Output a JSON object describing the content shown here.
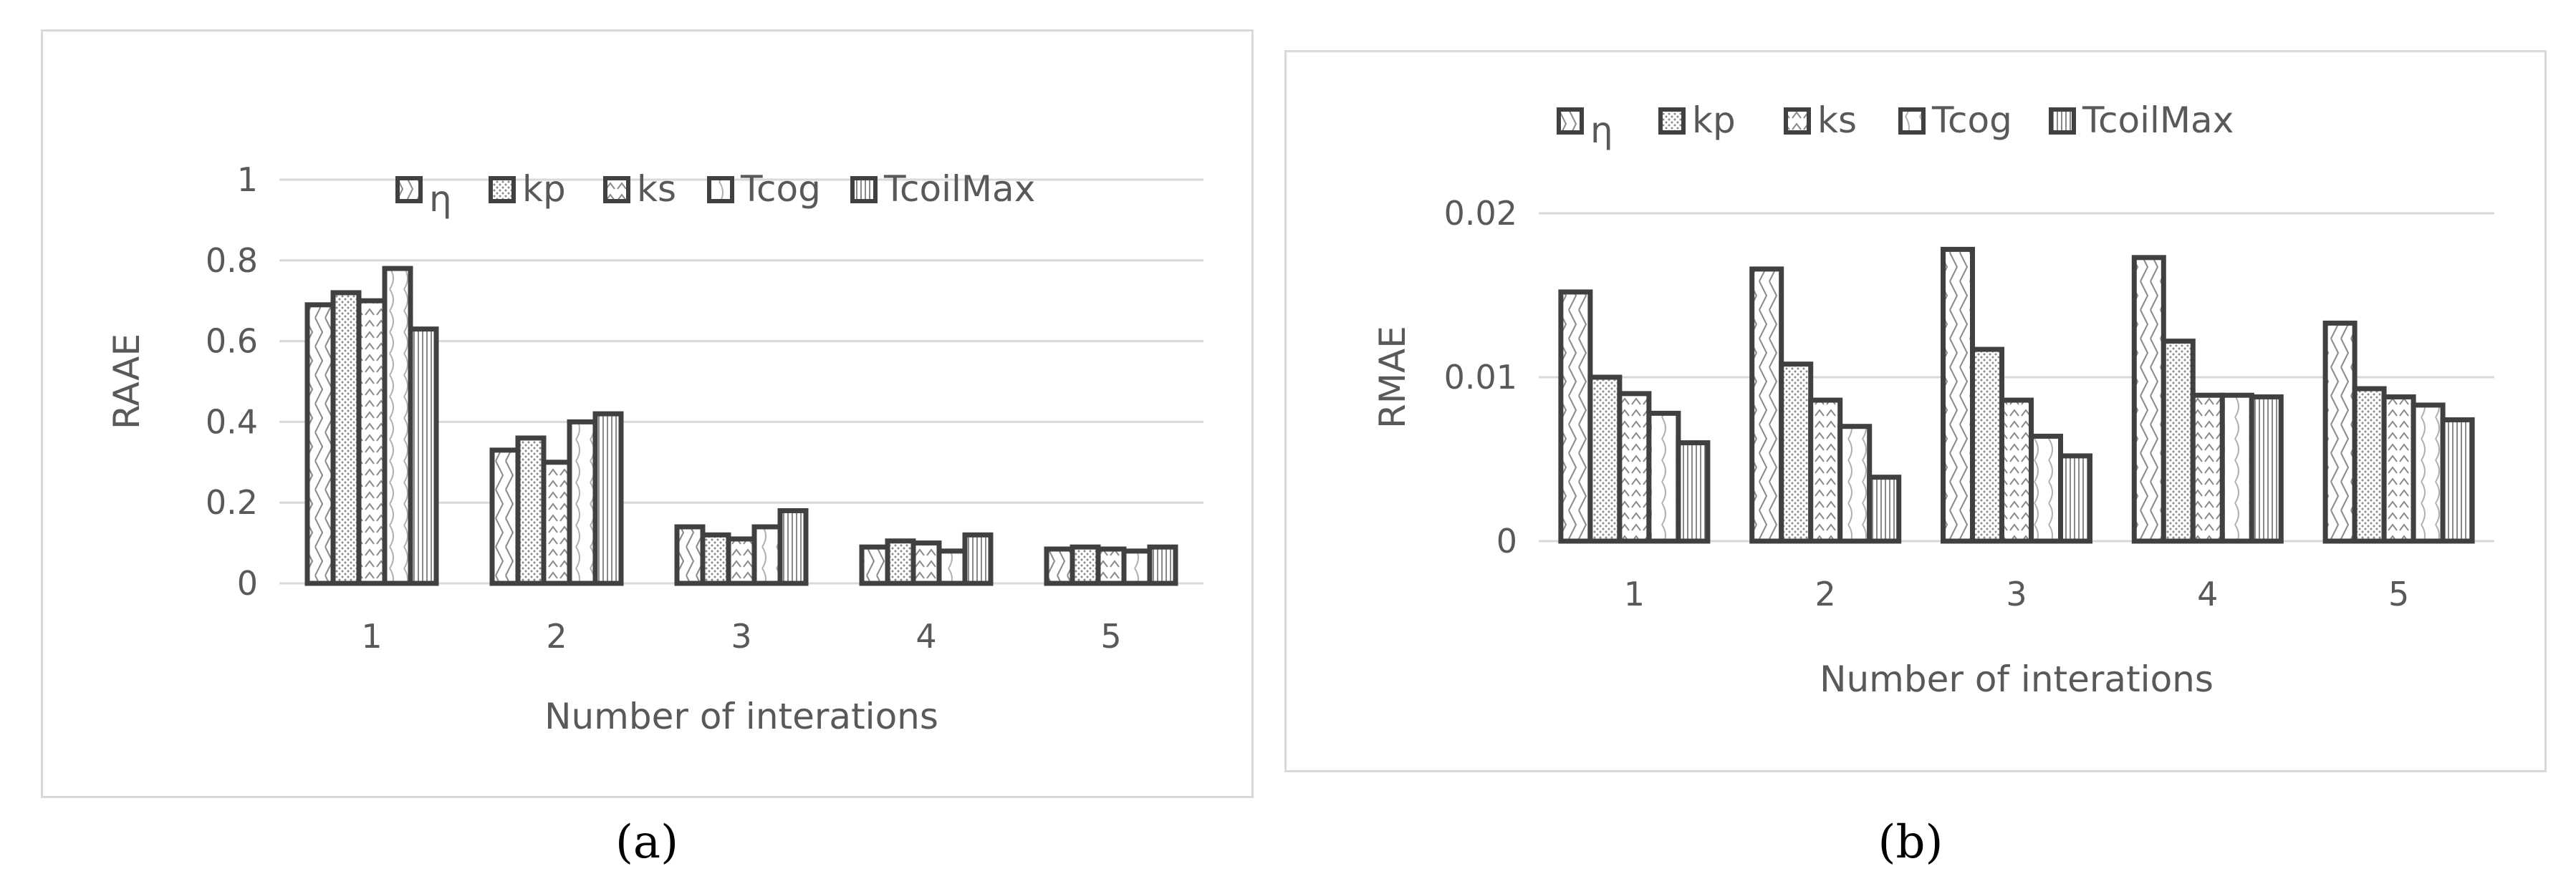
{
  "captions": {
    "a": "(a)",
    "b": "(b)"
  },
  "series_names": [
    "η",
    "kp",
    "ks",
    "Tcog",
    "TcoilMax"
  ],
  "colors": {
    "outline": "#404040",
    "grid": "#d9d9d9",
    "text": "#595959"
  },
  "chart_data": [
    {
      "id": "a",
      "type": "bar",
      "xlabel": "Number of interations",
      "ylabel": "RAAE",
      "categories": [
        "1",
        "2",
        "3",
        "4",
        "5"
      ],
      "yticks": [
        "0",
        "0.2",
        "0.4",
        "0.6",
        "0.8",
        "1"
      ],
      "ylim": [
        0,
        1
      ],
      "grid": true,
      "legend_position": "top",
      "series": [
        {
          "name": "η",
          "values": [
            0.69,
            0.33,
            0.14,
            0.09,
            0.085
          ]
        },
        {
          "name": "kp",
          "values": [
            0.72,
            0.36,
            0.12,
            0.105,
            0.09
          ]
        },
        {
          "name": "ks",
          "values": [
            0.7,
            0.3,
            0.11,
            0.1,
            0.085
          ]
        },
        {
          "name": "Tcog",
          "values": [
            0.78,
            0.4,
            0.14,
            0.08,
            0.08
          ]
        },
        {
          "name": "TcoilMax",
          "values": [
            0.63,
            0.42,
            0.18,
            0.12,
            0.09
          ]
        }
      ]
    },
    {
      "id": "b",
      "type": "bar",
      "xlabel": "Number of interations",
      "ylabel": "RMAE",
      "categories": [
        "1",
        "2",
        "3",
        "4",
        "5"
      ],
      "yticks": [
        "0",
        "0.01",
        "0.02"
      ],
      "ylim": [
        0,
        0.02
      ],
      "grid": true,
      "legend_position": "top",
      "series": [
        {
          "name": "η",
          "values": [
            0.0152,
            0.0166,
            0.0178,
            0.0173,
            0.0133
          ]
        },
        {
          "name": "kp",
          "values": [
            0.01,
            0.0108,
            0.0117,
            0.0122,
            0.0093
          ]
        },
        {
          "name": "ks",
          "values": [
            0.009,
            0.0086,
            0.0086,
            0.0089,
            0.0088
          ]
        },
        {
          "name": "Tcog",
          "values": [
            0.0078,
            0.007,
            0.0064,
            0.0089,
            0.0083
          ]
        },
        {
          "name": "TcoilMax",
          "values": [
            0.006,
            0.0039,
            0.0052,
            0.0088,
            0.0074
          ]
        }
      ]
    }
  ]
}
